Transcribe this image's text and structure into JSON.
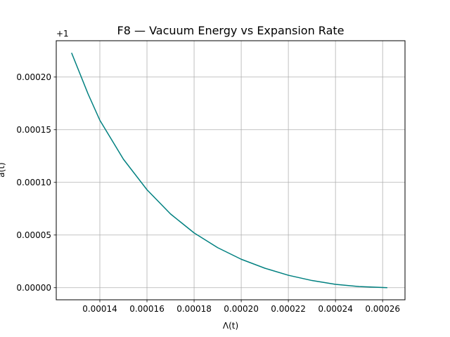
{
  "chart_data": {
    "type": "line",
    "title": "F8 — Vacuum Energy vs Expansion Rate",
    "xlabel": "Λ(t)",
    "ylabel": "a(t)",
    "y_offset_label": "+1",
    "xlim": [
      0.0001215,
      0.0002695
    ],
    "ylim": [
      -1.15e-05,
      0.0002345
    ],
    "grid": true,
    "x_ticks": [
      0.00014,
      0.00016,
      0.00018,
      0.0002,
      0.00022,
      0.00024,
      0.00026
    ],
    "x_tick_labels": [
      "0.00014",
      "0.00016",
      "0.00018",
      "0.00020",
      "0.00022",
      "0.00024",
      "0.00026"
    ],
    "y_ticks": [
      0,
      5e-05,
      0.0001,
      0.00015,
      0.0002
    ],
    "y_tick_labels": [
      "0.00000",
      "0.00005",
      "0.00010",
      "0.00015",
      "0.00020"
    ],
    "series": [
      {
        "color": "#008080",
        "x": [
          0.000128,
          0.000135,
          0.00014,
          0.00015,
          0.00016,
          0.00017,
          0.00018,
          0.00019,
          0.0002,
          0.00021,
          0.00022,
          0.00023,
          0.00024,
          0.00025,
          0.000262
        ],
        "y": [
          0.000223,
          0.000184,
          0.000159,
          0.000122,
          9.3e-05,
          7e-05,
          5.2e-05,
          3.8e-05,
          2.7e-05,
          1.85e-05,
          1.18e-05,
          6.8e-06,
          3.2e-06,
          1.1e-06,
          0.0
        ]
      }
    ]
  }
}
